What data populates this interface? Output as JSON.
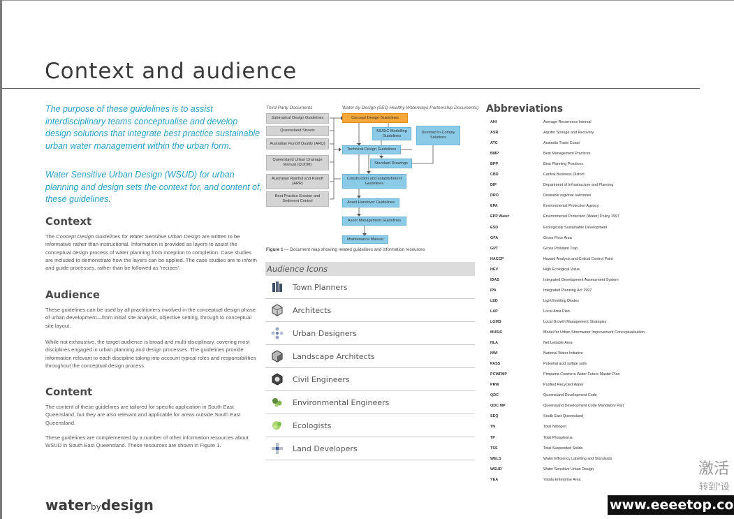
{
  "page": {
    "title": "Context and audience",
    "intro_1": "The purpose of these guidelines is to assist interdisciplinary teams conceptualise and develop design solutions that integrate best practice sustainable urban water management within the urban form.",
    "intro_2": "Water Sensitive Urban Design (WSUD) for urban planning and design sets the context for, and content of, these guidelines."
  },
  "context": {
    "heading": "Context",
    "body_italic": "Concept Design Guidelines for Water Sensitive Urban Design",
    "body_pre": "The ",
    "body_post": " are written to be informative rather than instructional. Information is provided as layers to assist the conceptual design process of water planning from inception to completion. Case studies are included to demonstrate how the layers can be applied. The case studies are to inform and guide processes, rather than be followed as 'recipes'."
  },
  "audience": {
    "heading": "Audience",
    "body_1": "These guidelines can be used by all practitioners involved in the conceptual design phase of urban development—from initial site analysis, objective setting, through to conceptual site layout.",
    "body_2": "While not exhaustive, the target audience is broad and multi-disciplinary, covering most disciplines engaged in urban planning and design processes. The guidelines provide information relevant to each discipline taking into account typical roles and responsibilities throughout the conceptual design process."
  },
  "content": {
    "heading": "Content",
    "body_1": "The content of these guidelines are tailored for specific application in South East Queensland, but they are also relevant and applicable for areas outside South East Queensland.",
    "body_2": "These guidelines are complemented by a number of other information resources about WSUD in South East Queensland. These resources are shown in Figure 1."
  },
  "diagram": {
    "header_left": "Third Party Documents",
    "header_right": "Water by Design (SEQ Healthy Waterways Partnership Documents)",
    "third_party": [
      "Subtropical Design Guidelines",
      "Queensland Streets",
      "Australian Runoff Quality (ARQ)",
      "Queensland Urban Drainage Manual (QUDM)",
      "Australian Rainfall and Runoff (ARR)",
      "Best Practice Erosion and Sediment Control"
    ],
    "main_flow": [
      "Concept Design Guidelines",
      "Technical Design Guidelines",
      "Construction and establishment Guidelines",
      "Asset Handover Guidelines",
      "Asset Management Guidelines",
      "Maintenance Manual"
    ],
    "music": "MUSIC Modelling Guidelines",
    "deemed": "Deemed to Comply Solutions",
    "standard": "Standard Drawings",
    "caption_label": "Figure 1",
    "caption_text": " — Document map showing related guidelines and information resources"
  },
  "audience_icons": {
    "header": "Audience Icons",
    "items": [
      {
        "label": "Town Planners",
        "icon": "town-planner-icon"
      },
      {
        "label": "Architects",
        "icon": "architect-icon"
      },
      {
        "label": "Urban Designers",
        "icon": "urban-designer-icon"
      },
      {
        "label": "Landscape Architects",
        "icon": "landscape-architect-icon"
      },
      {
        "label": "Civil Engineers",
        "icon": "civil-engineer-icon"
      },
      {
        "label": "Environmental Engineers",
        "icon": "environmental-engineer-icon"
      },
      {
        "label": "Ecologists",
        "icon": "ecologist-icon"
      },
      {
        "label": "Land Developers",
        "icon": "land-developer-icon"
      }
    ]
  },
  "abbreviations": {
    "title": "Abbreviations",
    "items": [
      {
        "code": "AHI",
        "def": "Average Recurrence Interval"
      },
      {
        "code": "ASR",
        "def": "Aquifer Storage and Recovery"
      },
      {
        "code": "ATC",
        "def": "Australia Trade Coast"
      },
      {
        "code": "BMP",
        "def": "Best Management Practices"
      },
      {
        "code": "BPP",
        "def": "Best Planning Practices"
      },
      {
        "code": "CBD",
        "def": "Central Business District"
      },
      {
        "code": "DIP",
        "def": "Department of Infrastructure and Planning"
      },
      {
        "code": "DRO",
        "def": "Desirable regional outcomes"
      },
      {
        "code": "EPA",
        "def": "Environmental Protection Agency"
      },
      {
        "code": "EPP Water",
        "def": "Environmental Protection (Water) Policy 1997"
      },
      {
        "code": "ESD",
        "def": "Ecologically Sustainable Development"
      },
      {
        "code": "GFA",
        "def": "Gross Floor Area"
      },
      {
        "code": "GPT",
        "def": "Gross Pollutant Trap"
      },
      {
        "code": "HACCP",
        "def": "Hazard Analysis and Critical Control Point"
      },
      {
        "code": "HEV",
        "def": "High Ecological Value"
      },
      {
        "code": "IDAS",
        "def": "Integrated Development Assessment System"
      },
      {
        "code": "IPA",
        "def": "Integrated Planning Act 1997"
      },
      {
        "code": "LED",
        "def": "Light Emitting Diodes"
      },
      {
        "code": "LAP",
        "def": "Local Area Plan"
      },
      {
        "code": "LGMS",
        "def": "Local Growth Management Strategies"
      },
      {
        "code": "MUSIC",
        "def": "Model for Urban Stormwater Improvement Conceptualisation"
      },
      {
        "code": "NLA",
        "def": "Net Lettable Area"
      },
      {
        "code": "NWI",
        "def": "National Water Initiative"
      },
      {
        "code": "PASS",
        "def": "Potential acid sulfate soils"
      },
      {
        "code": "PCWFMP",
        "def": "Pimpama Coomera Water Future Master Plan"
      },
      {
        "code": "PRW",
        "def": "Purified Recycled Water"
      },
      {
        "code": "QDC",
        "def": "Queensland Development Code"
      },
      {
        "code": "QDC MP",
        "def": "Queensland Development Code Mandatory Part"
      },
      {
        "code": "SEQ",
        "def": "South East Queensland"
      },
      {
        "code": "TN",
        "def": "Total Nitrogen"
      },
      {
        "code": "TP",
        "def": "Total Phosphorus"
      },
      {
        "code": "TSS",
        "def": "Total Suspended Solids"
      },
      {
        "code": "WELS",
        "def": "Water Efficiency Labelling and Standards"
      },
      {
        "code": "WSUD",
        "def": "Water Sensitive Urban Design"
      },
      {
        "code": "YEA",
        "def": "Yatala Enterprise Area"
      }
    ]
  },
  "brand": {
    "part1": "water",
    "part2": "by",
    "part3": "design"
  },
  "watermarks": {
    "line1": "激活",
    "line2": "转到\"设",
    "line3": "www.eeeetop.com"
  },
  "colors": {
    "accent": "#29a0c8",
    "orange": "#f5a83a",
    "blue_box": "#8ccbe8",
    "grey_box": "#d4d4d4"
  }
}
